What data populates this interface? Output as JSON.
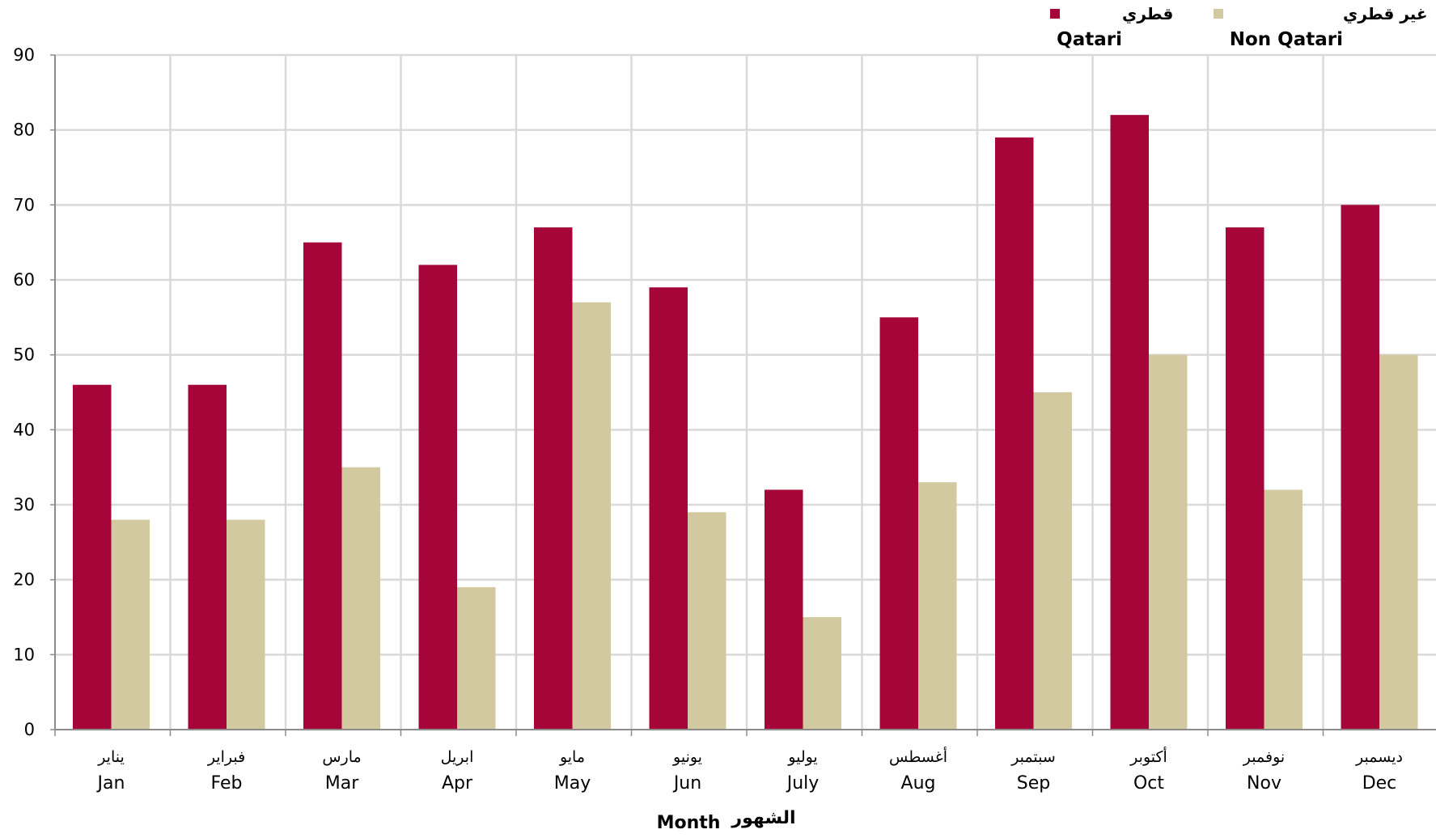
{
  "chart_data": {
    "type": "bar",
    "categories": [
      {
        "ar": "يناير",
        "en": "Jan"
      },
      {
        "ar": "فبراير",
        "en": "Feb"
      },
      {
        "ar": "مارس",
        "en": "Mar"
      },
      {
        "ar": "ابريل",
        "en": "Apr"
      },
      {
        "ar": "مايو",
        "en": "May"
      },
      {
        "ar": "يونيو",
        "en": "Jun"
      },
      {
        "ar": "يوليو",
        "en": "July"
      },
      {
        "ar": "أغسطس",
        "en": "Aug"
      },
      {
        "ar": "سبتمبر",
        "en": "Sep"
      },
      {
        "ar": "أكتوبر",
        "en": "Oct"
      },
      {
        "ar": "نوفمبر",
        "en": "Nov"
      },
      {
        "ar": "ديسمبر",
        "en": "Dec"
      }
    ],
    "series": [
      {
        "name_ar": "قطري",
        "name_en": "Qatari",
        "color": "#A50538",
        "values": [
          46,
          46,
          65,
          62,
          67,
          59,
          32,
          55,
          79,
          82,
          67,
          70
        ]
      },
      {
        "name_ar": "غير قطري",
        "name_en": "Non Qatari",
        "color": "#D2C9A1",
        "values": [
          28,
          28,
          35,
          19,
          57,
          29,
          15,
          33,
          45,
          50,
          32,
          50
        ]
      }
    ],
    "xlabel_ar": "الشهور",
    "xlabel_en": "Month",
    "ylim": [
      0,
      90
    ],
    "yticks": [
      0,
      10,
      20,
      30,
      40,
      50,
      60,
      70,
      80,
      90
    ],
    "grid": true,
    "legend_position": "top-right",
    "grid_color": "#D9D9D9",
    "axis_color": "#8C8C8C"
  }
}
